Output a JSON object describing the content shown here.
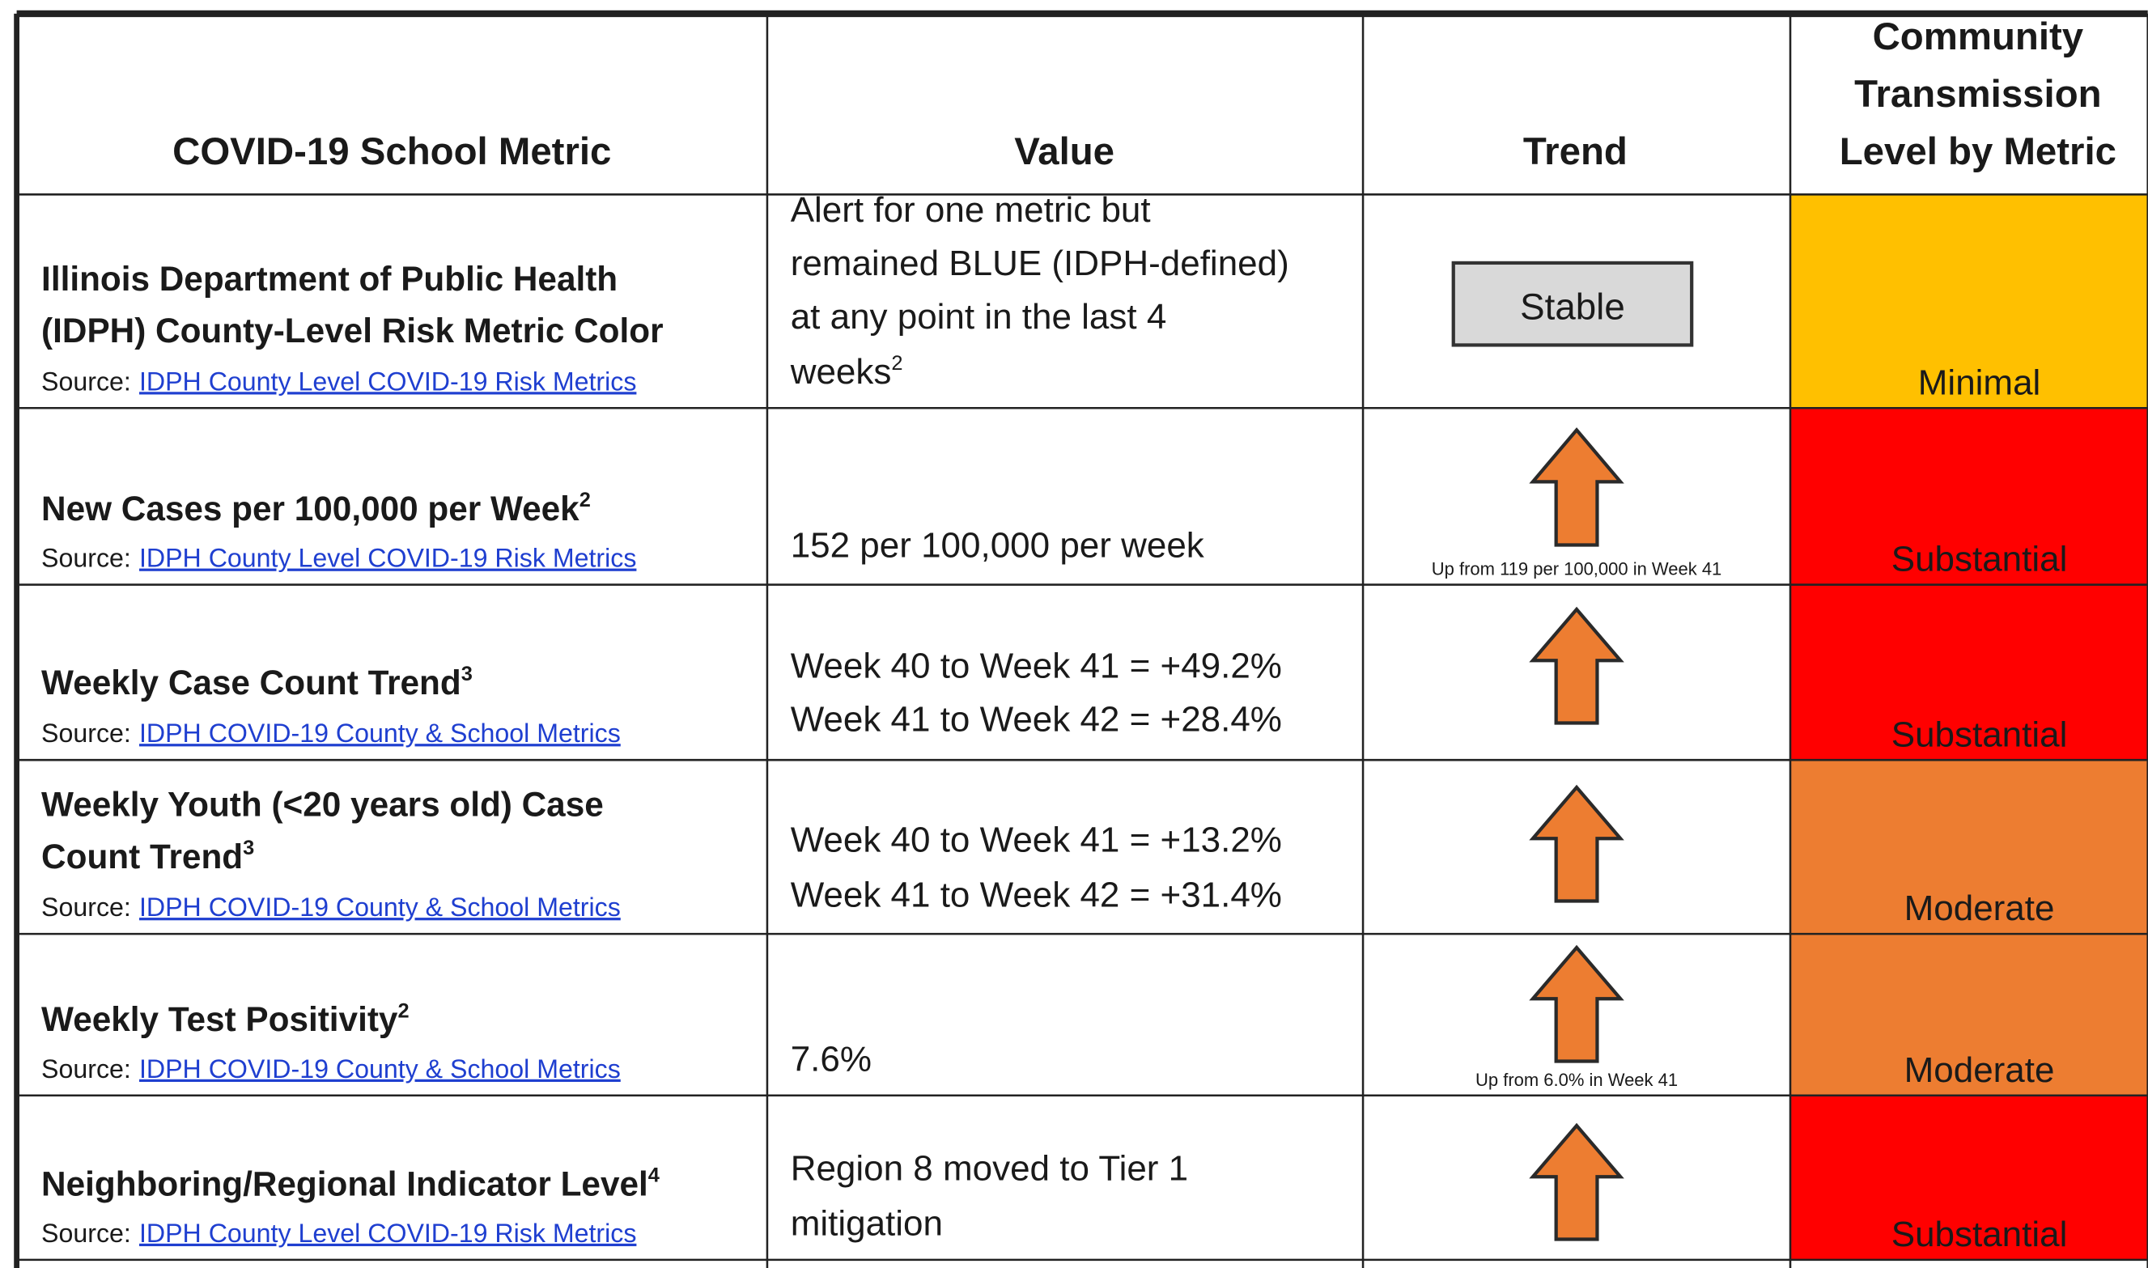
{
  "table": {
    "columns": [
      [
        "COVID-19 School Metric"
      ],
      [
        "Value"
      ],
      [
        "Trend"
      ],
      [
        "Community",
        "Transmission",
        "Level by Metric"
      ]
    ],
    "source_label": "Source:",
    "rows": [
      {
        "metric": [
          "Illinois Department of Public Health",
          "(IDPH) County-Level Risk Metric Color"
        ],
        "source": "IDPH County Level COVID-19 Risk Metrics",
        "value": [
          "Alert for one metric but",
          "remained BLUE (IDPH-defined)",
          "at any point in the last 4",
          "weeks"
        ],
        "value_sup": "2",
        "trend": "Stable",
        "level": "Minimal",
        "color": "#ffc000",
        "level_color": "#1a1a1a"
      },
      {
        "metric": [
          "New Cases per 100,000 per Week"
        ],
        "metric_sup": "2",
        "source": "IDPH County Level COVID-19 Risk Metrics",
        "value": [
          "152 per 100,000 per week"
        ],
        "trend_note": "Up from 119 per 100,000 in Week 41",
        "level": "Substantial",
        "color": "#ff0000",
        "level_color": "#b00000"
      },
      {
        "metric": [
          "Weekly Case Count Trend"
        ],
        "metric_sup": "3",
        "source": "IDPH COVID-19 County & School Metrics",
        "value": [
          "Week 40 to Week 41 = +49.2%",
          "Week 41 to Week 42 = +28.4%"
        ],
        "level": "Substantial",
        "color": "#ff0000",
        "level_color": "#b00000"
      },
      {
        "metric": [
          "Weekly Youth (<20 years old) Case",
          "Count Trend"
        ],
        "metric_sup": "3",
        "source": "IDPH COVID-19 County & School Metrics",
        "value": [
          "Week 40 to Week 41 = +13.2%",
          "Week 41 to Week 42 = +31.4%"
        ],
        "level": "Moderate",
        "color": "#ed7d31",
        "level_color": "#1a1a1a"
      },
      {
        "metric": [
          "Weekly Test Positivity"
        ],
        "metric_sup": "2",
        "source": "IDPH COVID-19 County & School Metrics",
        "value": [
          "7.6%"
        ],
        "trend_note": "Up from 6.0% in Week 41",
        "level": "Moderate",
        "color": "#ed7d31",
        "level_color": "#1a1a1a"
      },
      {
        "metric": [
          "Neighboring/Regional Indicator Level"
        ],
        "metric_sup": "4",
        "source": "IDPH County Level COVID-19 Risk Metrics",
        "value": [
          "Region 8 moved to Tier 1",
          "mitigation"
        ],
        "level": "Substantial",
        "color": "#ff0000",
        "level_color": "#b00000"
      }
    ]
  }
}
